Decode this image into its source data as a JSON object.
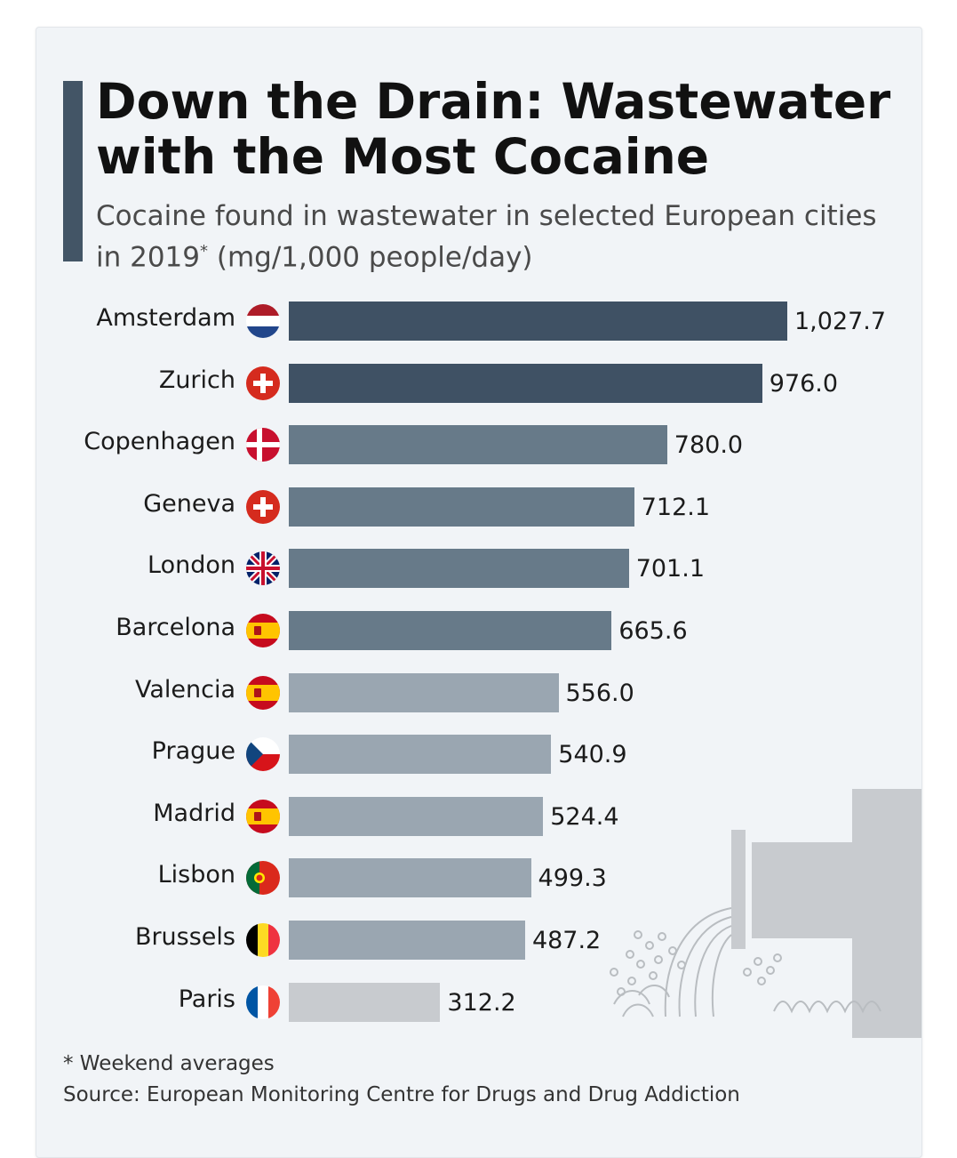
{
  "title": "Down the Drain: Wastewater with the Most Cocaine",
  "subtitle_main": "Cocaine found in wastewater in selected European cities in 2019",
  "subtitle_mark": "*",
  "subtitle_unit": " (mg/1,000 people/day)",
  "footnote": "* Weekend averages",
  "source": "Source: European Monitoring Centre for Drugs and Drug Addiction",
  "colors": {
    "dark": "#3f5164",
    "mid": "#677a89",
    "light": "#9aa6b1",
    "lightest": "#c8cbcf",
    "title_bar": "#435566"
  },
  "chart_data": {
    "type": "bar",
    "orientation": "horizontal",
    "title": "Down the Drain: Wastewater with the Most Cocaine",
    "subtitle": "Cocaine found in wastewater in selected European cities in 2019* (mg/1,000 people/day)",
    "xlim": [
      0,
      1027.7
    ],
    "categories": [
      "Amsterdam",
      "Zurich",
      "Copenhagen",
      "Geneva",
      "London",
      "Barcelona",
      "Valencia",
      "Prague",
      "Madrid",
      "Lisbon",
      "Brussels",
      "Paris"
    ],
    "values": [
      1027.7,
      976.0,
      780.0,
      712.1,
      701.1,
      665.6,
      556.0,
      540.9,
      524.4,
      499.3,
      487.2,
      312.2
    ],
    "value_labels": [
      "1,027.7",
      "976.0",
      "780.0",
      "712.1",
      "701.1",
      "665.6",
      "556.0",
      "540.9",
      "524.4",
      "499.3",
      "487.2",
      "312.2"
    ],
    "flags": [
      "netherlands-flag-icon",
      "switzerland-flag-icon",
      "denmark-flag-icon",
      "switzerland-flag-icon",
      "united-kingdom-flag-icon",
      "spain-flag-icon",
      "spain-flag-icon",
      "czechia-flag-icon",
      "spain-flag-icon",
      "portugal-flag-icon",
      "belgium-flag-icon",
      "france-flag-icon"
    ],
    "bar_colors": [
      "dark",
      "dark",
      "mid",
      "mid",
      "mid",
      "mid",
      "light",
      "light",
      "light",
      "light",
      "light",
      "lightest"
    ],
    "grid": false,
    "legend": "none"
  }
}
